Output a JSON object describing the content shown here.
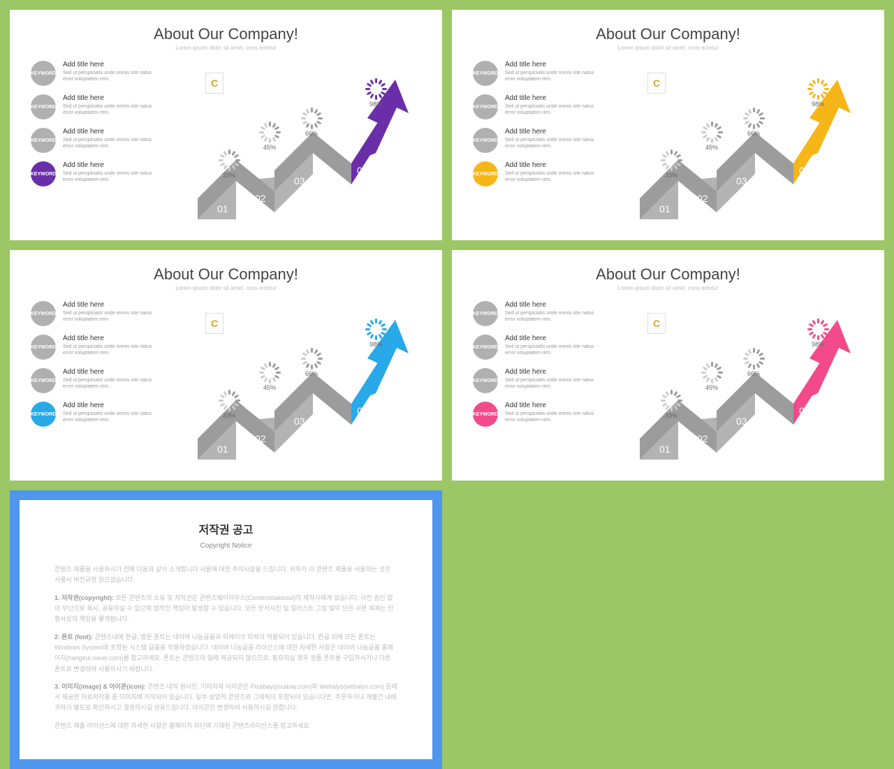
{
  "slide": {
    "title": "About Our Company!",
    "subtitle": "Lorem ipsum dolor sit amet, cons ectetur",
    "badge_label": "KEYWORD",
    "item_title": "Add title here",
    "item_desc": "Sed ut perspiciatis unde omnis iste natus error voluptatem rem.",
    "badge_gray": "#b0b0b0",
    "steps": [
      "01",
      "02",
      "03",
      "04"
    ],
    "percents": [
      "33%",
      "45%",
      "66%",
      "98%"
    ],
    "arrow_gray": "#9c9c9c",
    "arrow_gray2": "#b3b3b3",
    "tick_gray": "#9c9c9c",
    "logo": "C"
  },
  "variants": [
    {
      "accent": "#6a2fa8"
    },
    {
      "accent": "#f7b617"
    },
    {
      "accent": "#29a9e8"
    },
    {
      "accent": "#f24a8a"
    }
  ],
  "notice": {
    "title": "저작권 공고",
    "subtitle": "Copyright Notice",
    "p0": "콘텐츠 제품을 사용하시기 전에 다음과 같이 소개합니다 사용에 대한 주의사항을 드립니다. 귀하가 이 콘텐츠 제품을 사용하는 것은 사용시 버전규정 읽으셨습니다.",
    "p1_label": "1. 저작권(copyright):",
    "p1": "모든 콘텐츠의 소유 및 저작권은 콘텐츠웨어하우스(Contentstakeout)의 제작사에게 있습니다. 사전 승인 없이 무단으로 복사, 공유하실 수 없으며 법적인 책임이 발생할 수 있습니다. 모든 문서사진 및 일러스트 그림 및무 단은 사본 복제는 민형사상의 책임을 물게됩니다.",
    "p2_label": "2. 폰트 (font):",
    "p2": "콘텐츠내에 한글, 영문 폰트는 네이버 나눔글꼴과 위메이크 따박이 적용되어 있습니다. 한글 외에 모든 폰트는 Windows System에 포함된 시스템 글꼴을 적용하였습니다. 네이버 나눔글꼴 라이선스에 대한 자세한 사항은 네이버 나눔글꼴 홈페이지(hangeul.naver.com)를 참고하세요. 폰트는 콘텐츠의 일에 제공되지 않으므로, 필요하실 경우 정품 폰트를 구입하시거나 다른 폰트로 변경하여 사용하시기 바랍니다.",
    "p3_label": "3. 이미지(image) & 아이콘(icon):",
    "p3": "콘텐츠 내의 원사진, 이미지와 아이콘은 Pixabay(pixabay.com)와 Webalys(webalys.com) 등에서 제공한 자료저작물 중 이미지에 저작되어 있습니다. 일부 상업적 콘텐츠와 그래픽이 포함되어 있습니다만, 주문하거나 개별건 내에 귀하가 별도로 확인하시고 결정하시길 권유드립니다. 아이콘은 변경하여 사용하시길 권합니다.",
    "p4": "콘텐츠 매출 라이선스에 대한 자세한 사항은 홈페이지 하단에 기재된 콘텐츠라이선스를 참고하세요."
  }
}
